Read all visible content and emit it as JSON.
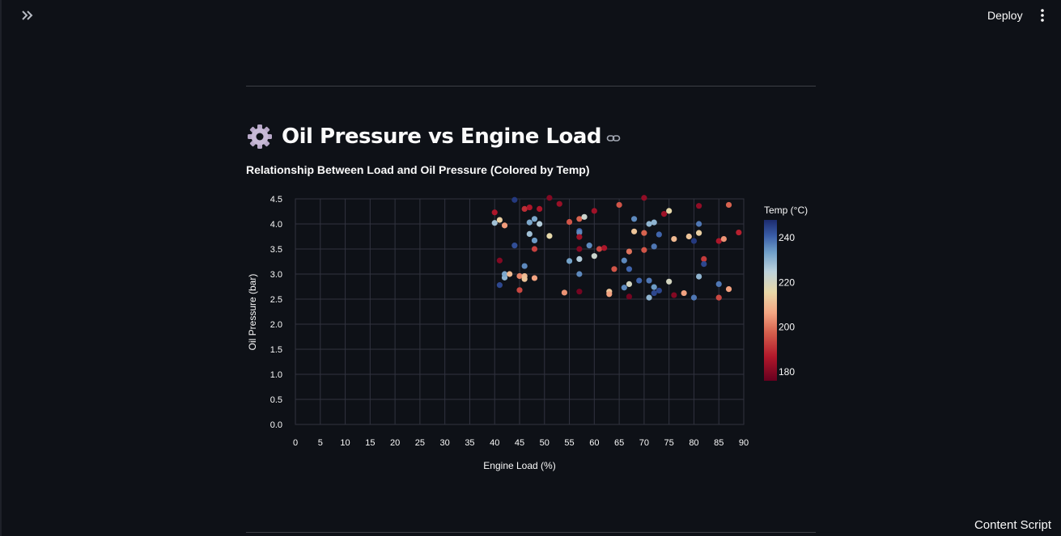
{
  "toolbar": {
    "deploy_label": "Deploy",
    "expand_icon": "double-chevron-right-icon",
    "menu_icon": "vertical-ellipsis-icon"
  },
  "page": {
    "heading_icon": "gear-emoji-icon",
    "heading": "Oil Pressure vs Engine Load",
    "link_icon": "link-icon"
  },
  "footer": {
    "label": "Content Script"
  },
  "colors": {
    "background": "#0e1117",
    "grid": "#31333f",
    "text": "#fafafa"
  },
  "chart_data": {
    "type": "scatter",
    "title": "Relationship Between Load and Oil Pressure (Colored by Temp)",
    "xlabel": "Engine Load (%)",
    "ylabel": "Oil Pressure (bar)",
    "xlim": [
      0,
      90
    ],
    "ylim": [
      0,
      4.5
    ],
    "xticks": [
      0,
      5,
      10,
      15,
      20,
      25,
      30,
      35,
      40,
      45,
      50,
      55,
      60,
      65,
      70,
      75,
      80,
      85,
      90
    ],
    "yticks": [
      0.0,
      0.5,
      1.0,
      1.5,
      2.0,
      2.5,
      3.0,
      3.5,
      4.0,
      4.5
    ],
    "grid": true,
    "color_scale": {
      "label": "Temp (°C)",
      "range": [
        176,
        248
      ],
      "ticks": [
        180,
        200,
        220,
        240
      ],
      "colormap": "RdYlBu"
    },
    "points": [
      {
        "x": 40,
        "y": 4.23,
        "temp": 186
      },
      {
        "x": 40,
        "y": 4.02,
        "temp": 228
      },
      {
        "x": 41,
        "y": 4.08,
        "temp": 214
      },
      {
        "x": 41,
        "y": 3.27,
        "temp": 180
      },
      {
        "x": 41,
        "y": 2.78,
        "temp": 244
      },
      {
        "x": 42,
        "y": 2.93,
        "temp": 230
      },
      {
        "x": 42,
        "y": 3.0,
        "temp": 232
      },
      {
        "x": 42,
        "y": 3.97,
        "temp": 205
      },
      {
        "x": 43,
        "y": 3.0,
        "temp": 210
      },
      {
        "x": 44,
        "y": 4.48,
        "temp": 246
      },
      {
        "x": 44,
        "y": 3.57,
        "temp": 243
      },
      {
        "x": 45,
        "y": 2.96,
        "temp": 202
      },
      {
        "x": 45,
        "y": 2.68,
        "temp": 194
      },
      {
        "x": 46,
        "y": 3.16,
        "temp": 236
      },
      {
        "x": 46,
        "y": 2.96,
        "temp": 210
      },
      {
        "x": 46,
        "y": 2.9,
        "temp": 212
      },
      {
        "x": 46,
        "y": 4.3,
        "temp": 190
      },
      {
        "x": 47,
        "y": 4.33,
        "temp": 186
      },
      {
        "x": 47,
        "y": 4.03,
        "temp": 232
      },
      {
        "x": 47,
        "y": 3.8,
        "temp": 228
      },
      {
        "x": 48,
        "y": 4.1,
        "temp": 232
      },
      {
        "x": 48,
        "y": 3.67,
        "temp": 234
      },
      {
        "x": 48,
        "y": 3.5,
        "temp": 193
      },
      {
        "x": 48,
        "y": 2.92,
        "temp": 206
      },
      {
        "x": 49,
        "y": 4.3,
        "temp": 186
      },
      {
        "x": 49,
        "y": 4.0,
        "temp": 226
      },
      {
        "x": 51,
        "y": 4.52,
        "temp": 180
      },
      {
        "x": 51,
        "y": 3.76,
        "temp": 216
      },
      {
        "x": 53,
        "y": 4.4,
        "temp": 183
      },
      {
        "x": 54,
        "y": 2.63,
        "temp": 204
      },
      {
        "x": 55,
        "y": 4.04,
        "temp": 196
      },
      {
        "x": 55,
        "y": 3.26,
        "temp": 233
      },
      {
        "x": 57,
        "y": 4.1,
        "temp": 198
      },
      {
        "x": 57,
        "y": 3.86,
        "temp": 240
      },
      {
        "x": 57,
        "y": 3.83,
        "temp": 236
      },
      {
        "x": 57,
        "y": 3.74,
        "temp": 184
      },
      {
        "x": 57,
        "y": 3.3,
        "temp": 226
      },
      {
        "x": 57,
        "y": 3.5,
        "temp": 180
      },
      {
        "x": 57,
        "y": 3.0,
        "temp": 236
      },
      {
        "x": 57,
        "y": 2.65,
        "temp": 178
      },
      {
        "x": 58,
        "y": 4.14,
        "temp": 222
      },
      {
        "x": 59,
        "y": 3.57,
        "temp": 236
      },
      {
        "x": 60,
        "y": 4.26,
        "temp": 184
      },
      {
        "x": 60,
        "y": 3.36,
        "temp": 222
      },
      {
        "x": 61,
        "y": 3.5,
        "temp": 194
      },
      {
        "x": 62,
        "y": 3.52,
        "temp": 186
      },
      {
        "x": 63,
        "y": 2.65,
        "temp": 212
      },
      {
        "x": 63,
        "y": 2.6,
        "temp": 206
      },
      {
        "x": 64,
        "y": 3.1,
        "temp": 196
      },
      {
        "x": 65,
        "y": 4.38,
        "temp": 196
      },
      {
        "x": 66,
        "y": 3.27,
        "temp": 236
      },
      {
        "x": 66,
        "y": 2.73,
        "temp": 236
      },
      {
        "x": 67,
        "y": 3.45,
        "temp": 200
      },
      {
        "x": 67,
        "y": 3.1,
        "temp": 240
      },
      {
        "x": 67,
        "y": 2.8,
        "temp": 220
      },
      {
        "x": 67,
        "y": 2.55,
        "temp": 178
      },
      {
        "x": 68,
        "y": 4.1,
        "temp": 236
      },
      {
        "x": 68,
        "y": 3.85,
        "temp": 212
      },
      {
        "x": 69,
        "y": 2.87,
        "temp": 240
      },
      {
        "x": 70,
        "y": 4.52,
        "temp": 182
      },
      {
        "x": 70,
        "y": 3.82,
        "temp": 198
      },
      {
        "x": 70,
        "y": 3.48,
        "temp": 196
      },
      {
        "x": 71,
        "y": 4.0,
        "temp": 230
      },
      {
        "x": 71,
        "y": 2.87,
        "temp": 238
      },
      {
        "x": 71,
        "y": 2.53,
        "temp": 230
      },
      {
        "x": 72,
        "y": 4.03,
        "temp": 230
      },
      {
        "x": 72,
        "y": 3.55,
        "temp": 238
      },
      {
        "x": 72,
        "y": 2.74,
        "temp": 234
      },
      {
        "x": 72,
        "y": 2.62,
        "temp": 244
      },
      {
        "x": 73,
        "y": 3.79,
        "temp": 240
      },
      {
        "x": 73,
        "y": 2.67,
        "temp": 244
      },
      {
        "x": 74,
        "y": 4.2,
        "temp": 184
      },
      {
        "x": 75,
        "y": 4.26,
        "temp": 216
      },
      {
        "x": 75,
        "y": 2.85,
        "temp": 220
      },
      {
        "x": 76,
        "y": 3.7,
        "temp": 210
      },
      {
        "x": 76,
        "y": 2.58,
        "temp": 180
      },
      {
        "x": 78,
        "y": 2.62,
        "temp": 206
      },
      {
        "x": 79,
        "y": 3.75,
        "temp": 212
      },
      {
        "x": 80,
        "y": 3.66,
        "temp": 246
      },
      {
        "x": 80,
        "y": 2.53,
        "temp": 238
      },
      {
        "x": 81,
        "y": 4.36,
        "temp": 182
      },
      {
        "x": 81,
        "y": 4.0,
        "temp": 238
      },
      {
        "x": 81,
        "y": 3.82,
        "temp": 214
      },
      {
        "x": 81,
        "y": 2.95,
        "temp": 230
      },
      {
        "x": 82,
        "y": 3.3,
        "temp": 192
      },
      {
        "x": 82,
        "y": 3.2,
        "temp": 244
      },
      {
        "x": 85,
        "y": 3.66,
        "temp": 186
      },
      {
        "x": 85,
        "y": 2.8,
        "temp": 238
      },
      {
        "x": 85,
        "y": 2.53,
        "temp": 194
      },
      {
        "x": 86,
        "y": 3.7,
        "temp": 204
      },
      {
        "x": 87,
        "y": 4.38,
        "temp": 198
      },
      {
        "x": 87,
        "y": 2.7,
        "temp": 206
      },
      {
        "x": 89,
        "y": 3.83,
        "temp": 188
      }
    ]
  }
}
